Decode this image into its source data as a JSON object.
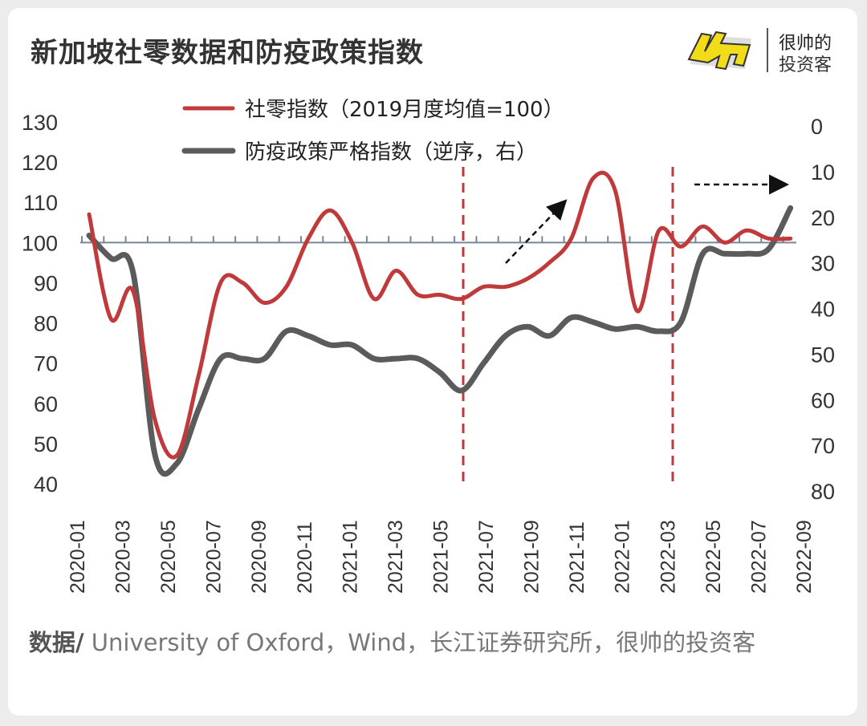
{
  "header": {
    "title": "新加坡社零数据和防疫政策指数"
  },
  "logo": {
    "mark": "帅",
    "line1": "很帅的",
    "line2": "投资客"
  },
  "chart_data": {
    "type": "line",
    "title": "新加坡社零数据和防疫政策指数",
    "x_ticks": [
      "2020-01",
      "2020-03",
      "2020-05",
      "2020-07",
      "2020-09",
      "2020-11",
      "2021-01",
      "2021-03",
      "2021-05",
      "2021-07",
      "2021-09",
      "2021-11",
      "2022-01",
      "2022-03",
      "2022-05",
      "2022-07",
      "2022-09"
    ],
    "y_left": {
      "range": [
        40,
        130
      ],
      "ticks": [
        130,
        120,
        110,
        100,
        90,
        80,
        70,
        60,
        50,
        40
      ]
    },
    "y_right": {
      "range": [
        0,
        80
      ],
      "reversed": true,
      "ticks": [
        0,
        10,
        20,
        30,
        40,
        50,
        60,
        70,
        80
      ]
    },
    "reference_line": 100,
    "legend_placement": "top-center",
    "x": [
      "2020-01",
      "2020-02",
      "2020-03",
      "2020-04",
      "2020-05",
      "2020-06",
      "2020-07",
      "2020-08",
      "2020-09",
      "2020-10",
      "2020-11",
      "2020-12",
      "2021-01",
      "2021-02",
      "2021-03",
      "2021-04",
      "2021-05",
      "2021-06",
      "2021-07",
      "2021-08",
      "2021-09",
      "2021-10",
      "2021-11",
      "2021-12",
      "2022-01",
      "2022-02",
      "2022-03",
      "2022-04",
      "2022-05",
      "2022-06",
      "2022-07",
      "2022-08",
      "2022-09"
    ],
    "series": [
      {
        "name": "社零指数（2019月度均值=100）",
        "axis": "left",
        "color": "#c0393b",
        "values": [
          107,
          81,
          88,
          56,
          47,
          67,
          90,
          90,
          85,
          89,
          101,
          108,
          100,
          86,
          93,
          87,
          87,
          86,
          89,
          89,
          91,
          95,
          101,
          116,
          113,
          83,
          103,
          99,
          104,
          100,
          103,
          101,
          101
        ]
      },
      {
        "name": "防疫政策严格指数（逆序，右）",
        "axis": "right",
        "color": "#5b5b5b",
        "values": [
          24,
          29,
          32,
          72,
          74,
          62,
          51,
          51,
          51,
          45,
          46,
          48,
          48,
          51,
          51,
          51,
          54,
          58,
          52,
          46,
          44,
          46,
          42,
          43,
          44.5,
          44,
          45,
          43,
          28,
          28,
          28,
          27,
          18
        ]
      }
    ],
    "annotations": {
      "vertical_dashed_lines": [
        "2021-06",
        "2022-03"
      ],
      "arrows": [
        "up-right",
        "right"
      ]
    }
  },
  "source": {
    "label": "数据/",
    "text": " University of Oxford，Wind，长江证券研究所，很帅的投资客"
  }
}
